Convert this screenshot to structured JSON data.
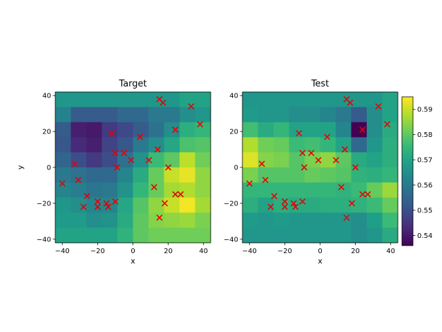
{
  "chart_data": [
    {
      "type": "heatmap",
      "title": "Target",
      "xlabel": "x",
      "ylabel": "y",
      "xlim": [
        -44,
        44
      ],
      "ylim": [
        -42,
        42
      ],
      "xticks": [
        -40,
        -20,
        0,
        20,
        40
      ],
      "yticks": [
        -40,
        -20,
        0,
        20,
        40
      ],
      "grid": {
        "nx": 10,
        "ny": 10,
        "x0": -44,
        "y0": -42,
        "dx": 8.8,
        "dy": 8.4
      },
      "values_top_to_bottom": [
        [
          0.567,
          0.567,
          0.567,
          0.567,
          0.567,
          0.567,
          0.567,
          0.567,
          0.57,
          0.57
        ],
        [
          0.562,
          0.553,
          0.553,
          0.553,
          0.556,
          0.556,
          0.56,
          0.56,
          0.565,
          0.567
        ],
        [
          0.553,
          0.541,
          0.54,
          0.546,
          0.549,
          0.553,
          0.558,
          0.565,
          0.573,
          0.575
        ],
        [
          0.552,
          0.543,
          0.541,
          0.548,
          0.552,
          0.56,
          0.565,
          0.571,
          0.578,
          0.579
        ],
        [
          0.555,
          0.55,
          0.546,
          0.55,
          0.558,
          0.566,
          0.576,
          0.58,
          0.589,
          0.582
        ],
        [
          0.56,
          0.558,
          0.556,
          0.556,
          0.563,
          0.572,
          0.581,
          0.59,
          0.593,
          0.585
        ],
        [
          0.563,
          0.561,
          0.559,
          0.56,
          0.566,
          0.575,
          0.581,
          0.587,
          0.588,
          0.585
        ],
        [
          0.567,
          0.565,
          0.563,
          0.563,
          0.571,
          0.579,
          0.585,
          0.59,
          0.594,
          0.587
        ],
        [
          0.568,
          0.568,
          0.565,
          0.566,
          0.572,
          0.58,
          0.584,
          0.585,
          0.586,
          0.583
        ],
        [
          0.57,
          0.57,
          0.57,
          0.57,
          0.574,
          0.58,
          0.582,
          0.582,
          0.582,
          0.582
        ]
      ]
    },
    {
      "type": "heatmap",
      "title": "Test",
      "xlabel": "x",
      "ylabel": "",
      "xlim": [
        -44,
        44
      ],
      "ylim": [
        -42,
        42
      ],
      "xticks": [
        -40,
        -20,
        0,
        20,
        40
      ],
      "yticks": [
        -40,
        -20,
        0,
        20,
        40
      ],
      "grid": {
        "nx": 10,
        "ny": 10,
        "x0": -44,
        "y0": -42,
        "dx": 8.8,
        "dy": 8.4
      },
      "values_top_to_bottom": [
        [
          0.567,
          0.567,
          0.567,
          0.567,
          0.567,
          0.567,
          0.567,
          0.567,
          0.567,
          0.57
        ],
        [
          0.568,
          0.567,
          0.567,
          0.565,
          0.565,
          0.563,
          0.56,
          0.553,
          0.565,
          0.57
        ],
        [
          0.577,
          0.572,
          0.575,
          0.57,
          0.57,
          0.57,
          0.563,
          0.536,
          0.565,
          0.572
        ],
        [
          0.588,
          0.582,
          0.581,
          0.576,
          0.577,
          0.575,
          0.57,
          0.556,
          0.567,
          0.573
        ],
        [
          0.592,
          0.584,
          0.583,
          0.579,
          0.583,
          0.585,
          0.58,
          0.572,
          0.57,
          0.573
        ],
        [
          0.583,
          0.579,
          0.579,
          0.579,
          0.581,
          0.58,
          0.579,
          0.574,
          0.573,
          0.575
        ],
        [
          0.575,
          0.575,
          0.575,
          0.575,
          0.575,
          0.575,
          0.574,
          0.576,
          0.581,
          0.586
        ],
        [
          0.573,
          0.57,
          0.573,
          0.572,
          0.572,
          0.573,
          0.573,
          0.574,
          0.576,
          0.581
        ],
        [
          0.568,
          0.567,
          0.568,
          0.567,
          0.567,
          0.567,
          0.567,
          0.565,
          0.569,
          0.576
        ],
        [
          0.567,
          0.567,
          0.567,
          0.567,
          0.567,
          0.567,
          0.567,
          0.565,
          0.567,
          0.572
        ]
      ]
    }
  ],
  "points": {
    "marker": "x",
    "color": "#e60000",
    "xy": [
      [
        15,
        38
      ],
      [
        17,
        36
      ],
      [
        33,
        34
      ],
      [
        38,
        24
      ],
      [
        -12,
        19
      ],
      [
        24,
        21
      ],
      [
        4,
        17
      ],
      [
        -10,
        8
      ],
      [
        -5,
        8
      ],
      [
        14,
        10
      ],
      [
        -33,
        2
      ],
      [
        -1,
        4
      ],
      [
        9,
        4
      ],
      [
        -9,
        0
      ],
      [
        20,
        0
      ],
      [
        -31,
        -7
      ],
      [
        -40,
        -9
      ],
      [
        12,
        -11
      ],
      [
        24,
        -15
      ],
      [
        27,
        -15
      ],
      [
        -26,
        -16
      ],
      [
        -20,
        -19
      ],
      [
        18,
        -20
      ],
      [
        -10,
        -19
      ],
      [
        -15,
        -20
      ],
      [
        -20,
        -22
      ],
      [
        -28,
        -22
      ],
      [
        -14,
        -22
      ],
      [
        15,
        -28
      ]
    ]
  },
  "colorbar": {
    "min": 0.536,
    "max": 0.595,
    "ticks": [
      "0.54",
      "0.55",
      "0.56",
      "0.57",
      "0.58",
      "0.59"
    ],
    "colormap": "viridis"
  }
}
